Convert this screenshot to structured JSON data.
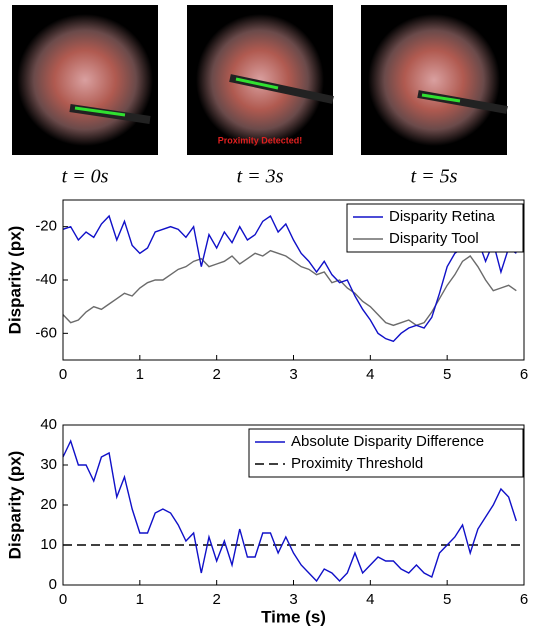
{
  "images": [
    {
      "caption": "t = 0s"
    },
    {
      "caption": "t = 3s"
    },
    {
      "caption": "t = 5s"
    }
  ],
  "annotation": "Proximity Detected!",
  "chart_data": [
    {
      "type": "line",
      "ylabel": "Disparity (px)",
      "xlim": [
        0,
        6
      ],
      "ylim": [
        -70,
        -10
      ],
      "xticks": [
        0,
        1,
        2,
        3,
        4,
        5,
        6
      ],
      "yticks": [
        -60,
        -40,
        -20
      ],
      "legend": "upper right",
      "x": [
        0,
        0.1,
        0.2,
        0.3,
        0.4,
        0.5,
        0.6,
        0.7,
        0.8,
        0.9,
        1,
        1.1,
        1.2,
        1.3,
        1.4,
        1.5,
        1.6,
        1.7,
        1.8,
        1.9,
        2,
        2.1,
        2.2,
        2.3,
        2.4,
        2.5,
        2.6,
        2.7,
        2.8,
        2.9,
        3,
        3.1,
        3.2,
        3.3,
        3.4,
        3.5,
        3.6,
        3.7,
        3.8,
        3.9,
        4,
        4.1,
        4.2,
        4.3,
        4.4,
        4.5,
        4.6,
        4.7,
        4.8,
        4.9,
        5,
        5.1,
        5.2,
        5.3,
        5.4,
        5.5,
        5.6,
        5.7,
        5.8,
        5.9
      ],
      "series": [
        {
          "name": "Disparity Tool",
          "color": "#6b6b6b",
          "values": [
            -53,
            -56,
            -55,
            -52,
            -50,
            -51,
            -49,
            -47,
            -45,
            -46,
            -43,
            -41,
            -40,
            -40,
            -38,
            -36,
            -35,
            -33,
            -32,
            -35,
            -34,
            -33,
            -31,
            -34,
            -32,
            -30,
            -31,
            -29,
            -30,
            -31,
            -33,
            -35,
            -36,
            -38,
            -37,
            -41,
            -40,
            -43,
            -45,
            -48,
            -50,
            -53,
            -56,
            -57,
            -56,
            -55,
            -57,
            -56,
            -52,
            -47,
            -42,
            -38,
            -33,
            -31,
            -35,
            -40,
            -44,
            -43,
            -42,
            -44
          ]
        },
        {
          "name": "Disparity Retina",
          "color": "#1010c8",
          "values": [
            -21,
            -20,
            -25,
            -22,
            -24,
            -19,
            -16,
            -25,
            -18,
            -27,
            -30,
            -28,
            -22,
            -21,
            -20,
            -21,
            -24,
            -20,
            -35,
            -23,
            -28,
            -22,
            -26,
            -20,
            -25,
            -23,
            -18,
            -16,
            -22,
            -19,
            -25,
            -30,
            -33,
            -37,
            -33,
            -38,
            -41,
            -40,
            -46,
            -51,
            -55,
            -60,
            -62,
            -63,
            -60,
            -58,
            -57,
            -58,
            -54,
            -45,
            -35,
            -30,
            -28,
            -25,
            -25,
            -33,
            -26,
            -37,
            -28,
            -30
          ]
        }
      ]
    },
    {
      "type": "line",
      "ylabel": "Disparity (px)",
      "xlabel": "Time (s)",
      "xlim": [
        0,
        6
      ],
      "ylim": [
        0,
        40
      ],
      "xticks": [
        0,
        1,
        2,
        3,
        4,
        5,
        6
      ],
      "yticks": [
        0,
        10,
        20,
        30,
        40
      ],
      "legend": "upper right",
      "x": [
        0,
        0.1,
        0.2,
        0.3,
        0.4,
        0.5,
        0.6,
        0.7,
        0.8,
        0.9,
        1,
        1.1,
        1.2,
        1.3,
        1.4,
        1.5,
        1.6,
        1.7,
        1.8,
        1.9,
        2,
        2.1,
        2.2,
        2.3,
        2.4,
        2.5,
        2.6,
        2.7,
        2.8,
        2.9,
        3,
        3.1,
        3.2,
        3.3,
        3.4,
        3.5,
        3.6,
        3.7,
        3.8,
        3.9,
        4,
        4.1,
        4.2,
        4.3,
        4.4,
        4.5,
        4.6,
        4.7,
        4.8,
        4.9,
        5,
        5.1,
        5.2,
        5.3,
        5.4,
        5.5,
        5.6,
        5.7,
        5.8,
        5.9
      ],
      "series": [
        {
          "name": "Absolute Disparity Difference",
          "color": "#1010c8",
          "values": [
            32,
            36,
            30,
            30,
            26,
            32,
            33,
            22,
            27,
            19,
            13,
            13,
            18,
            19,
            18,
            15,
            11,
            13,
            3,
            12,
            6,
            11,
            5,
            14,
            7,
            7,
            13,
            13,
            8,
            12,
            8,
            5,
            3,
            1,
            4,
            3,
            1,
            3,
            8,
            3,
            5,
            7,
            6,
            6,
            4,
            3,
            5,
            3,
            2,
            8,
            10,
            12,
            15,
            8,
            14,
            17,
            20,
            24,
            22,
            16
          ]
        }
      ],
      "hlines": [
        {
          "name": "Proximity Threshold",
          "value": 10,
          "color": "#000000"
        }
      ]
    }
  ]
}
